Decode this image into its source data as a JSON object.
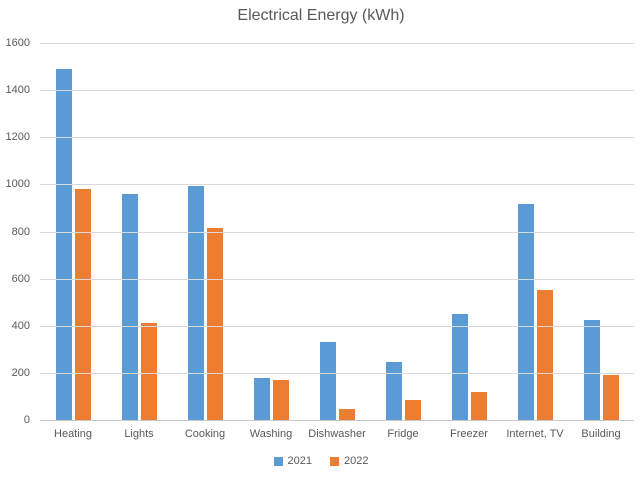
{
  "chart_data": {
    "type": "bar",
    "title": "Electrical Energy (kWh)",
    "categories": [
      "Heating",
      "Lights",
      "Cooking",
      "Washing",
      "Dishwasher",
      "Fridge",
      "Freezer",
      "Internet, TV",
      "Building"
    ],
    "series": [
      {
        "name": "2021",
        "color": "#5B9BD5",
        "values": [
          1490,
          960,
          995,
          180,
          330,
          245,
          450,
          915,
          425
        ]
      },
      {
        "name": "2022",
        "color": "#ED7D31",
        "values": [
          980,
          410,
          815,
          170,
          48,
          85,
          120,
          550,
          190
        ]
      }
    ],
    "xlabel": "",
    "ylabel": "",
    "ylim": [
      0,
      1600
    ],
    "yticks": [
      0,
      200,
      400,
      600,
      800,
      1000,
      1200,
      1400,
      1600
    ],
    "grid": true,
    "legend_position": "bottom",
    "colors": {
      "text": "#595959",
      "gridline": "#D9D9D9",
      "axis_line": "#C9C9C9",
      "background": "#FFFFFF"
    }
  }
}
